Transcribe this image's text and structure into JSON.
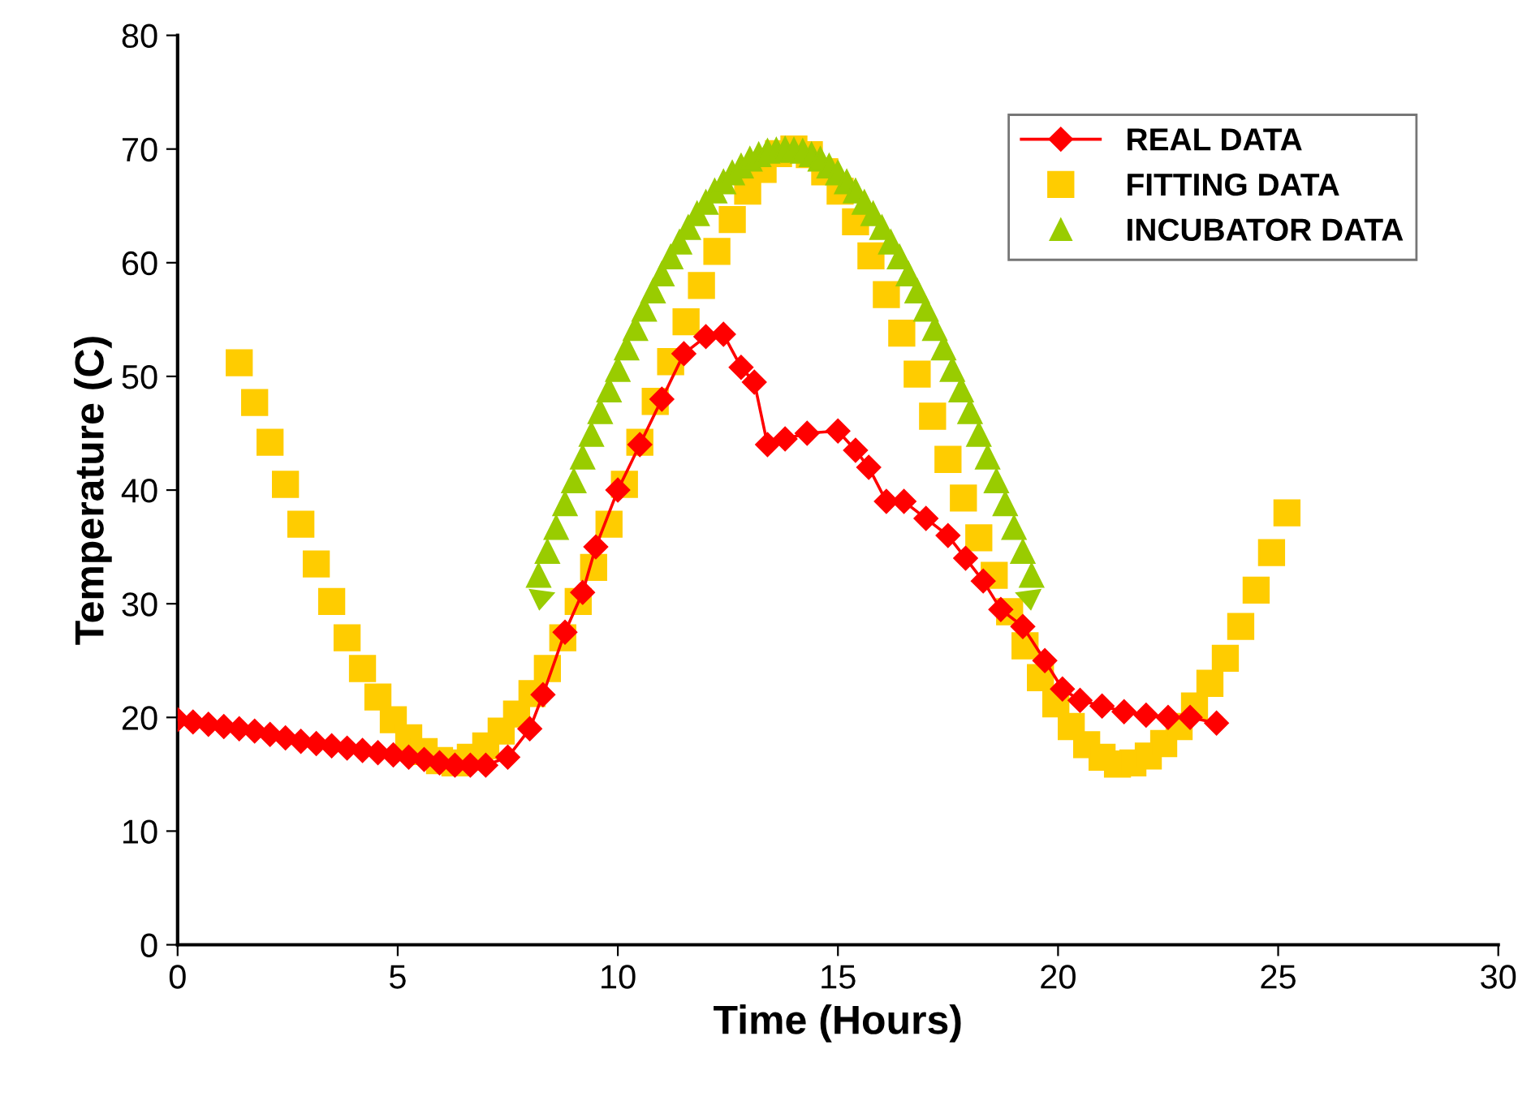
{
  "chart_data": {
    "type": "line",
    "xlabel": "Time (Hours)",
    "ylabel": "Temperature (C)",
    "xlim": [
      0,
      30
    ],
    "ylim": [
      0,
      80
    ],
    "xticks": [
      0,
      5,
      10,
      15,
      20,
      25,
      30
    ],
    "yticks": [
      0,
      10,
      20,
      30,
      40,
      50,
      60,
      70,
      80
    ],
    "grid": false,
    "legend": "top right",
    "series": [
      {
        "name": "REAL DATA",
        "marker": "diamond",
        "color": "#ff0000",
        "x": [
          0,
          0.35,
          0.7,
          1.05,
          1.4,
          1.75,
          2.1,
          2.45,
          2.8,
          3.15,
          3.5,
          3.85,
          4.2,
          4.55,
          4.9,
          5.25,
          5.6,
          5.95,
          6.3,
          6.65,
          7.0,
          7.5,
          8.0,
          8.3,
          8.8,
          9.2,
          9.5,
          10.0,
          10.5,
          11.0,
          11.5,
          12.0,
          12.4,
          12.8,
          13.1,
          13.4,
          13.8,
          14.3,
          15.0,
          15.4,
          15.7,
          16.1,
          16.5,
          17.0,
          17.5,
          17.9,
          18.3,
          18.7,
          19.2,
          19.7,
          20.1,
          20.5,
          21.0,
          21.5,
          22.0,
          22.5,
          23.0,
          23.6
        ],
        "values": [
          19.8,
          19.6,
          19.4,
          19.2,
          19.0,
          18.8,
          18.5,
          18.2,
          17.9,
          17.7,
          17.5,
          17.3,
          17.1,
          16.9,
          16.7,
          16.5,
          16.3,
          16.0,
          15.8,
          15.8,
          15.8,
          16.5,
          19.0,
          22.0,
          27.5,
          31.0,
          35.0,
          40.0,
          44.0,
          48.0,
          52.0,
          53.5,
          53.7,
          50.8,
          49.5,
          44.0,
          44.5,
          45.0,
          45.2,
          43.5,
          42.0,
          39.0,
          39.0,
          37.5,
          36.0,
          34.0,
          32.0,
          29.5,
          28.0,
          25.0,
          22.5,
          21.5,
          21.0,
          20.5,
          20.2,
          20.0,
          20.0,
          19.5
        ]
      },
      {
        "name": "FITTING DATA",
        "type": "scatter",
        "marker": "square",
        "color": "#ffcc00",
        "x": [
          1.4,
          1.75,
          2.1,
          2.45,
          2.8,
          3.15,
          3.5,
          3.85,
          4.2,
          4.55,
          4.9,
          5.25,
          5.6,
          5.95,
          6.3,
          6.65,
          7.0,
          7.35,
          7.7,
          8.05,
          8.4,
          8.75,
          9.1,
          9.45,
          9.8,
          10.15,
          10.5,
          10.85,
          11.2,
          11.55,
          11.9,
          12.25,
          12.6,
          12.95,
          13.3,
          13.65,
          14.0,
          14.35,
          14.7,
          15.05,
          15.4,
          15.75,
          16.1,
          16.45,
          16.8,
          17.15,
          17.5,
          17.85,
          18.2,
          18.55,
          18.9,
          19.25,
          19.6,
          19.95,
          20.3,
          20.65,
          21.0,
          21.35,
          21.7,
          22.05,
          22.4,
          22.75,
          23.1,
          23.45,
          23.8,
          24.15,
          24.5,
          24.85,
          25.2
        ],
        "values": [
          51.2,
          47.7,
          44.2,
          40.5,
          37.0,
          33.5,
          30.2,
          27.0,
          24.3,
          21.8,
          19.8,
          18.2,
          17.0,
          16.2,
          16.0,
          16.5,
          17.5,
          18.8,
          20.3,
          22.1,
          24.3,
          27.0,
          30.2,
          33.2,
          37.0,
          40.5,
          44.2,
          47.8,
          51.3,
          54.8,
          58.0,
          61.0,
          63.8,
          66.3,
          68.2,
          69.6,
          70.0,
          69.5,
          68.0,
          66.3,
          63.6,
          60.6,
          57.2,
          53.8,
          50.2,
          46.5,
          42.7,
          39.3,
          35.8,
          32.5,
          29.3,
          26.3,
          23.5,
          21.2,
          19.2,
          17.6,
          16.5,
          15.9,
          16.0,
          16.6,
          17.7,
          19.2,
          21.0,
          23.0,
          25.2,
          28.0,
          31.2,
          34.5,
          38.0
        ]
      },
      {
        "name": "INCUBATOR DATA",
        "type": "scatter",
        "marker": "triangle",
        "color": "#99cc00",
        "x": [
          8.2,
          8.4,
          8.6,
          8.8,
          9.0,
          9.2,
          9.4,
          9.6,
          9.8,
          10.0,
          10.2,
          10.4,
          10.6,
          10.8,
          11.0,
          11.2,
          11.4,
          11.6,
          11.8,
          12.0,
          12.2,
          12.4,
          12.6,
          12.8,
          13.0,
          13.2,
          13.4,
          13.6,
          13.8,
          14.0,
          14.2,
          14.4,
          14.6,
          14.8,
          15.0,
          15.2,
          15.4,
          15.6,
          15.8,
          16.0,
          16.2,
          16.4,
          16.6,
          16.8,
          17.0,
          17.2,
          17.4,
          17.6,
          17.8,
          18.0,
          18.2,
          18.4,
          18.6,
          18.8,
          19.0,
          19.2,
          19.4
        ],
        "values": [
          32.5,
          34.6,
          36.7,
          38.8,
          40.8,
          42.9,
          44.9,
          46.9,
          48.8,
          50.6,
          52.5,
          54.2,
          55.9,
          57.5,
          59.0,
          60.5,
          61.8,
          63.1,
          64.3,
          65.3,
          66.3,
          67.1,
          67.9,
          68.5,
          69.1,
          69.5,
          69.8,
          69.9,
          70.0,
          69.9,
          69.8,
          69.5,
          69.1,
          68.5,
          67.9,
          67.1,
          66.3,
          65.3,
          64.3,
          63.1,
          61.8,
          60.5,
          59.0,
          57.5,
          55.9,
          54.2,
          52.5,
          50.6,
          48.8,
          46.9,
          44.9,
          42.9,
          40.8,
          38.8,
          36.7,
          34.6,
          32.5
        ]
      }
    ]
  }
}
